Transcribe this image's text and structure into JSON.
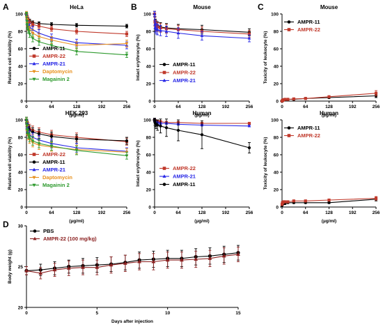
{
  "panel_labels": [
    "A",
    "B",
    "C",
    "D"
  ],
  "colors": {
    "AMPR-11": "#000000",
    "AMPR-22": "#c0392b",
    "AMPR-21": "#2727e6",
    "Daptomycin": "#e8901c",
    "Magainin 2": "#2e9a2e",
    "PBS": "#000000",
    "AMPR-22 (100 mg/kg)": "#8b2020"
  },
  "chart_data": [
    {
      "id": "A1",
      "type": "line",
      "title": "HeLa",
      "xlabel": "(µg/ml)",
      "ylabel": "Relative cell viability (%)",
      "xlim": [
        0,
        256
      ],
      "ylim": [
        0,
        100
      ],
      "xticks": [
        0,
        64,
        128,
        192,
        256
      ],
      "yticks": [
        0,
        20,
        40,
        60,
        80,
        100
      ],
      "legend_order": [
        "AMPR-11",
        "AMPR-22",
        "AMPR-21",
        "Daptomycin",
        "Magainin 2"
      ],
      "x": [
        0,
        1,
        2,
        4,
        8,
        16,
        32,
        64,
        128,
        256
      ],
      "series": [
        {
          "name": "AMPR-11",
          "values": [
            100,
            98,
            96,
            94,
            92,
            90,
            89,
            88,
            87,
            86
          ],
          "err": [
            2,
            2,
            2,
            2,
            2,
            2,
            2,
            2,
            2,
            2
          ]
        },
        {
          "name": "AMPR-22",
          "values": [
            100,
            97,
            95,
            93,
            90,
            88,
            86,
            83,
            80,
            77
          ],
          "err": [
            2,
            3,
            3,
            3,
            3,
            3,
            3,
            3,
            3,
            3
          ]
        },
        {
          "name": "AMPR-21",
          "values": [
            100,
            95,
            92,
            88,
            85,
            82,
            78,
            73,
            67,
            64
          ],
          "err": [
            2,
            3,
            4,
            4,
            4,
            4,
            4,
            4,
            4,
            4
          ]
        },
        {
          "name": "Daptomycin",
          "values": [
            100,
            94,
            90,
            85,
            82,
            78,
            74,
            70,
            64,
            66
          ],
          "err": [
            3,
            4,
            4,
            4,
            4,
            4,
            4,
            4,
            4,
            4
          ]
        },
        {
          "name": "Magainin 2",
          "values": [
            100,
            92,
            88,
            82,
            77,
            72,
            68,
            64,
            57,
            53
          ],
          "err": [
            2,
            4,
            4,
            4,
            4,
            4,
            4,
            4,
            4,
            3
          ]
        }
      ]
    },
    {
      "id": "A2",
      "type": "line",
      "title": "HEK 293",
      "xlabel": "(µg/ml)",
      "ylabel": "Relative cell viability (%)",
      "xlim": [
        0,
        256
      ],
      "ylim": [
        0,
        100
      ],
      "xticks": [
        0,
        64,
        128,
        192,
        256
      ],
      "yticks": [
        0,
        20,
        40,
        60,
        80,
        100
      ],
      "legend_order": [
        "AMPR-22",
        "AMPR-11",
        "AMPR-21",
        "Daptomycin",
        "Magainin 2"
      ],
      "x": [
        0,
        1,
        2,
        4,
        8,
        16,
        32,
        64,
        128,
        256
      ],
      "series": [
        {
          "name": "AMPR-22",
          "values": [
            100,
            96,
            94,
            92,
            90,
            88,
            86,
            83,
            80,
            75
          ],
          "err": [
            3,
            4,
            5,
            5,
            5,
            5,
            5,
            5,
            5,
            4
          ]
        },
        {
          "name": "AMPR-11",
          "values": [
            100,
            96,
            93,
            90,
            88,
            86,
            84,
            81,
            78,
            76
          ],
          "err": [
            3,
            4,
            5,
            5,
            5,
            5,
            5,
            5,
            5,
            4
          ]
        },
        {
          "name": "AMPR-21",
          "values": [
            100,
            95,
            91,
            87,
            83,
            80,
            77,
            73,
            68,
            64
          ],
          "err": [
            3,
            5,
            5,
            5,
            5,
            5,
            5,
            5,
            5,
            4
          ]
        },
        {
          "name": "Daptomycin",
          "values": [
            100,
            93,
            88,
            82,
            78,
            74,
            71,
            69,
            66,
            63
          ],
          "err": [
            3,
            5,
            5,
            5,
            5,
            5,
            5,
            5,
            5,
            4
          ]
        },
        {
          "name": "Magainin 2",
          "values": [
            100,
            94,
            89,
            84,
            80,
            76,
            73,
            70,
            65,
            59
          ],
          "err": [
            3,
            5,
            5,
            5,
            5,
            5,
            5,
            5,
            5,
            4
          ]
        }
      ]
    },
    {
      "id": "B1",
      "type": "line",
      "title": "Mouse",
      "xlabel": "(µg/ml)",
      "ylabel": "Intact erythrocyte (%)",
      "xlim": [
        0,
        256
      ],
      "ylim": [
        0,
        100
      ],
      "xticks": [
        0,
        64,
        128,
        192,
        256
      ],
      "yticks": [
        0,
        20,
        40,
        60,
        80,
        100
      ],
      "legend_order": [
        "AMPR-11",
        "AMPR-22",
        "AMPR-21"
      ],
      "x": [
        0,
        1,
        2,
        4,
        8,
        16,
        32,
        64,
        128,
        256
      ],
      "series": [
        {
          "name": "AMPR-11",
          "values": [
            100,
            92,
            89,
            87,
            86,
            85,
            84,
            83,
            82,
            79
          ],
          "err": [
            3,
            5,
            5,
            5,
            5,
            5,
            5,
            5,
            5,
            4
          ]
        },
        {
          "name": "AMPR-22",
          "values": [
            100,
            91,
            88,
            86,
            85,
            84,
            83,
            82,
            80,
            77
          ],
          "err": [
            3,
            5,
            5,
            5,
            5,
            5,
            5,
            5,
            5,
            4
          ]
        },
        {
          "name": "AMPR-21",
          "values": [
            100,
            88,
            85,
            83,
            82,
            81,
            80,
            78,
            75,
            72
          ],
          "err": [
            3,
            5,
            6,
            6,
            6,
            6,
            6,
            6,
            5,
            4
          ]
        }
      ]
    },
    {
      "id": "B2",
      "type": "line",
      "title": "Human",
      "xlabel": "(µg/ml)",
      "ylabel": "Intact erythrocyte (%)",
      "xlim": [
        0,
        256
      ],
      "ylim": [
        0,
        100
      ],
      "xticks": [
        0,
        64,
        128,
        192,
        256
      ],
      "yticks": [
        0,
        20,
        40,
        60,
        80,
        100
      ],
      "legend_order": [
        "AMPR-22",
        "AMPR-21",
        "AMPR-11"
      ],
      "x": [
        0,
        1,
        2,
        4,
        8,
        16,
        32,
        64,
        128,
        256
      ],
      "series": [
        {
          "name": "AMPR-22",
          "values": [
            100,
            99,
            99,
            98,
            98,
            98,
            97,
            97,
            96,
            96
          ],
          "err": [
            1,
            1,
            1,
            1,
            1,
            1,
            1,
            1,
            1,
            1
          ]
        },
        {
          "name": "AMPR-21",
          "values": [
            100,
            98,
            98,
            97,
            97,
            96,
            96,
            95,
            94,
            93
          ],
          "err": [
            1,
            1,
            1,
            1,
            1,
            1,
            1,
            1,
            1,
            1
          ]
        },
        {
          "name": "AMPR-11",
          "values": [
            100,
            97,
            96,
            95,
            94,
            93,
            91,
            88,
            83,
            68
          ],
          "err": [
            2,
            3,
            4,
            5,
            6,
            8,
            10,
            12,
            16,
            6
          ]
        }
      ]
    },
    {
      "id": "C1",
      "type": "line",
      "title": "Mouse",
      "xlabel": "(µg/ml)",
      "ylabel": "Toxicity of leukocyte (%)",
      "xlim": [
        0,
        256
      ],
      "ylim": [
        0,
        100
      ],
      "xticks": [
        0,
        64,
        128,
        192,
        256
      ],
      "yticks": [
        0,
        20,
        40,
        60,
        80,
        100
      ],
      "legend_order": [
        "AMPR-11",
        "AMPR-22"
      ],
      "x": [
        0,
        1,
        2,
        4,
        8,
        16,
        32,
        64,
        128,
        256
      ],
      "series": [
        {
          "name": "AMPR-11",
          "values": [
            0,
            0.5,
            1,
            1,
            1.5,
            2,
            2,
            3,
            4,
            6
          ],
          "err": [
            0.5,
            0.5,
            0.5,
            0.5,
            0.5,
            0.5,
            1,
            1,
            1,
            2
          ]
        },
        {
          "name": "AMPR-22",
          "values": [
            0,
            0.5,
            1,
            1.5,
            2,
            2,
            2.5,
            3,
            5,
            9
          ],
          "err": [
            0.5,
            0.5,
            0.5,
            0.5,
            0.5,
            0.5,
            1,
            1,
            1,
            3
          ]
        }
      ]
    },
    {
      "id": "C2",
      "type": "line",
      "title": "Human",
      "xlabel": "(µg/ml)",
      "ylabel": "Toxicity of leukocyte (%)",
      "xlim": [
        0,
        256
      ],
      "ylim": [
        0,
        100
      ],
      "xticks": [
        0,
        64,
        128,
        192,
        256
      ],
      "yticks": [
        0,
        20,
        40,
        60,
        80,
        100
      ],
      "legend_order": [
        "AMPR-11",
        "AMPR-22"
      ],
      "x": [
        0,
        1,
        2,
        4,
        8,
        16,
        32,
        64,
        128,
        256
      ],
      "series": [
        {
          "name": "AMPR-11",
          "values": [
            2,
            3,
            4,
            4,
            4,
            5,
            5,
            5,
            5,
            9
          ],
          "err": [
            1,
            1,
            1,
            1,
            1,
            1,
            1,
            1,
            1,
            2
          ]
        },
        {
          "name": "AMPR-22",
          "values": [
            3,
            5,
            5,
            6,
            6,
            6,
            7,
            7,
            8,
            10
          ],
          "err": [
            1,
            1,
            1,
            1,
            1,
            1,
            1,
            1,
            1,
            2
          ]
        }
      ]
    },
    {
      "id": "D",
      "type": "line",
      "title": "",
      "xlabel": "Days after injection",
      "ylabel": "Body weight (g)",
      "xlim": [
        0,
        15
      ],
      "ylim": [
        20,
        30
      ],
      "xticks": [
        0,
        5,
        10,
        15
      ],
      "yticks": [
        20,
        25,
        30
      ],
      "legend_order": [
        "PBS",
        "AMPR-22 (100 mg/kg)"
      ],
      "x": [
        0,
        1,
        2,
        3,
        4,
        5,
        6,
        7,
        8,
        9,
        10,
        11,
        12,
        13,
        14,
        15
      ],
      "series": [
        {
          "name": "PBS",
          "values": [
            24.5,
            24.6,
            24.8,
            25.0,
            25.1,
            25.2,
            25.3,
            25.5,
            25.8,
            25.9,
            26.0,
            26.0,
            26.2,
            26.3,
            26.5,
            26.7
          ],
          "err": [
            0.5,
            0.7,
            0.8,
            0.8,
            0.9,
            0.9,
            0.9,
            0.9,
            1.0,
            1.0,
            1.0,
            1.0,
            1.0,
            1.0,
            1.0,
            0.9
          ]
        },
        {
          "name": "AMPR-22 (100 mg/kg)",
          "values": [
            24.5,
            24.2,
            24.6,
            24.8,
            24.9,
            24.9,
            25.2,
            25.4,
            25.6,
            25.6,
            25.8,
            25.8,
            25.9,
            26.0,
            26.3,
            26.5
          ],
          "err": [
            0.5,
            0.7,
            0.8,
            0.9,
            0.9,
            0.9,
            1.0,
            1.0,
            1.0,
            1.0,
            1.0,
            1.0,
            1.0,
            1.0,
            1.0,
            0.9
          ]
        }
      ]
    }
  ]
}
